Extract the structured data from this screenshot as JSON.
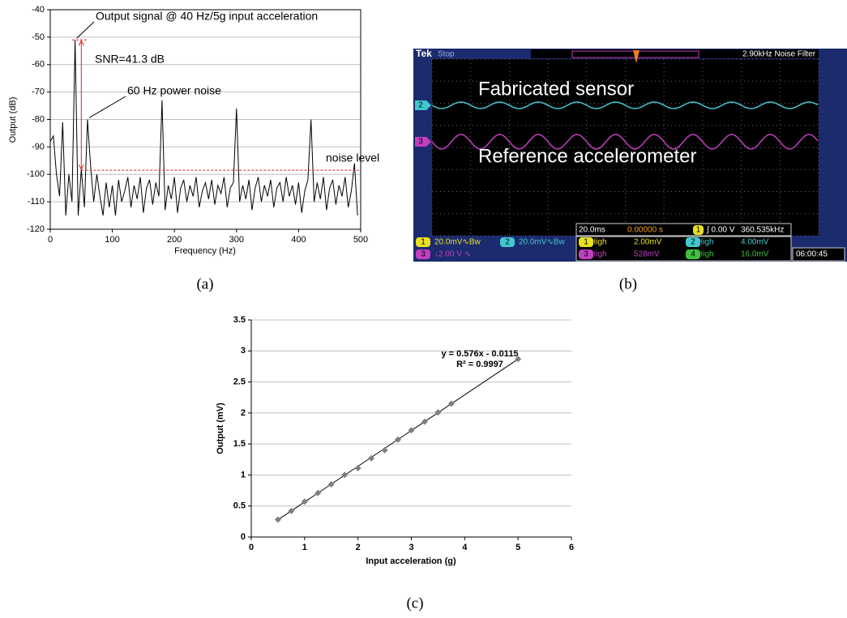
{
  "chart_data": [
    {
      "type": "line",
      "caption": "(a)",
      "x_label": "Frequency (Hz)",
      "y_label": "Output (dB)",
      "x": [
        0,
        5,
        10,
        15,
        20,
        25,
        30,
        35,
        40,
        45,
        50,
        55,
        60,
        65,
        70,
        75,
        80,
        85,
        90,
        95,
        100,
        105,
        110,
        115,
        120,
        125,
        130,
        135,
        140,
        145,
        150,
        155,
        160,
        165,
        170,
        175,
        180,
        185,
        190,
        195,
        200,
        205,
        210,
        215,
        220,
        225,
        230,
        235,
        240,
        245,
        250,
        255,
        260,
        265,
        270,
        275,
        280,
        285,
        290,
        295,
        300,
        305,
        310,
        315,
        320,
        325,
        330,
        335,
        340,
        345,
        350,
        355,
        360,
        365,
        370,
        375,
        380,
        385,
        390,
        395,
        400,
        405,
        410,
        415,
        420,
        425,
        430,
        435,
        440,
        445,
        450,
        455,
        460,
        465,
        470,
        475,
        480,
        485,
        490,
        495
      ],
      "series": [
        {
          "color": "#000000",
          "values": [
            -88,
            -86,
            -100,
            -108,
            -81,
            -115,
            -100,
            -110,
            -51,
            -115,
            -98,
            -112,
            -80,
            -97,
            -110,
            -100,
            -108,
            -115,
            -103,
            -112,
            -104,
            -115,
            -102,
            -110,
            -106,
            -101,
            -112,
            -104,
            -109,
            -101,
            -114,
            -105,
            -102,
            -111,
            -103,
            -108,
            -73,
            -113,
            -104,
            -109,
            -101,
            -114,
            -105,
            -102,
            -110,
            -104,
            -108,
            -101,
            -112,
            -106,
            -103,
            -109,
            -102,
            -111,
            -104,
            -107,
            -101,
            -112,
            -105,
            -103,
            -76,
            -110,
            -104,
            -109,
            -102,
            -113,
            -105,
            -101,
            -110,
            -104,
            -108,
            -102,
            -112,
            -105,
            -103,
            -110,
            -101,
            -108,
            -104,
            -111,
            -103,
            -114,
            -106,
            -102,
            -80,
            -110,
            -103,
            -109,
            -101,
            -113,
            -105,
            -102,
            -111,
            -104,
            -108,
            -101,
            -112,
            -106,
            -96,
            -115
          ]
        }
      ],
      "reference_lines": [
        {
          "value": -51,
          "x": [
            35,
            60
          ],
          "color": "#e02020"
        },
        {
          "value": -98.5,
          "x": [
            50,
            500
          ],
          "color": "#e02020"
        }
      ],
      "annotations": [
        "Output signal @ 40 Hz/5g input acceleration",
        "SNR=41.3 dB",
        "60 Hz power noise",
        "noise level"
      ],
      "xlim": [
        0,
        500
      ],
      "ylim": [
        -120,
        -40
      ],
      "xticks": [
        0,
        100,
        200,
        300,
        400,
        500
      ],
      "yticks": [
        -120,
        -110,
        -100,
        -90,
        -80,
        -70,
        -60,
        -50,
        -40
      ],
      "grid": true
    },
    {
      "type": "scatter",
      "caption": "(c)",
      "x_label": "Input acceleration (g)",
      "y_label": "Output (mV)",
      "x": [
        0.5,
        0.75,
        1,
        1.25,
        1.5,
        1.75,
        2,
        2.25,
        2.5,
        2.75,
        3,
        3.25,
        3.5,
        3.75,
        5
      ],
      "values": [
        0.28,
        0.42,
        0.57,
        0.71,
        0.85,
        1.0,
        1.11,
        1.27,
        1.4,
        1.57,
        1.72,
        1.86,
        2.01,
        2.15,
        2.87
      ],
      "color": "#7f7f7f",
      "trendline": {
        "slope": 0.576,
        "intercept": -0.0115,
        "x": [
          0.5,
          5
        ],
        "equation": "y = 0.576x - 0.0115",
        "r_squared": "R² = 0.9997"
      },
      "xlim": [
        0,
        6
      ],
      "ylim": [
        0,
        3.5
      ],
      "xticks": [
        0,
        1,
        2,
        3,
        4,
        5,
        6
      ],
      "yticks": [
        0,
        0.5,
        1,
        1.5,
        2,
        2.5,
        3,
        3.5
      ],
      "grid": true
    }
  ],
  "scope": {
    "caption": "(b)",
    "brand": "Tek",
    "status": "Stop",
    "filter": "2.90kHz  Noise Filter",
    "trace_labels": [
      "Fabricated sensor",
      "Reference accelerometer"
    ],
    "channel_markers": [
      "2",
      "3"
    ],
    "timebase": "20.0ms",
    "trigger_position": "0.00000 s",
    "trigger_channel": "1",
    "trigger_level": "∫ 0.00 V",
    "frequency": "360.535kHz",
    "channels": [
      {
        "ch": "1",
        "setting": "20.0mV∿Bw"
      },
      {
        "ch": "2",
        "setting": "20.0mV∿Bw"
      },
      {
        "ch": "3",
        "setting": "↓2.00 V ∿"
      }
    ],
    "measurements": [
      {
        "ch": "1",
        "label": "High",
        "value": "2.00mV"
      },
      {
        "ch": "2",
        "label": "High",
        "value": "4.00mV"
      },
      {
        "ch": "3",
        "label": "High",
        "value": "528mV"
      },
      {
        "ch": "4",
        "label": "High",
        "value": "16.0mV"
      }
    ],
    "clock": "06:00:45"
  }
}
